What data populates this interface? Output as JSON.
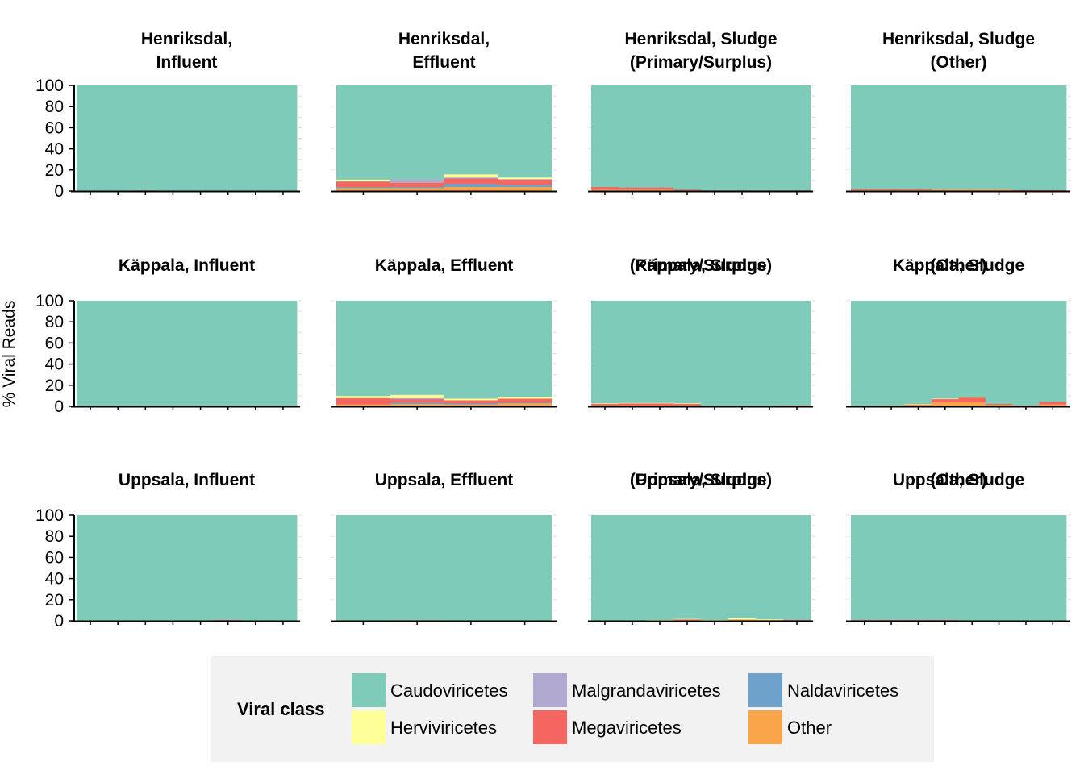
{
  "chart_data": {
    "type": "bar",
    "stacked": true,
    "layout": "facet-grid-3x4",
    "ylabel": "% Viral Reads",
    "ylim": [
      0,
      100
    ],
    "yticks": [
      0,
      20,
      40,
      60,
      80,
      100
    ],
    "grid": false,
    "legend": {
      "title": "Viral class",
      "position": "bottom"
    },
    "series": [
      {
        "name": "Caudoviricetes",
        "color": "#7ecbb9"
      },
      {
        "name": "Herviviricetes",
        "color": "#ffff99"
      },
      {
        "name": "Malgrandaviricetes",
        "color": "#b2a9d1"
      },
      {
        "name": "Megaviricetes",
        "color": "#f4665f"
      },
      {
        "name": "Naldaviricetes",
        "color": "#6fa2ca"
      },
      {
        "name": "Other",
        "color": "#fba54b"
      }
    ],
    "panels": [
      {
        "title": "Henriksdal,\nInfluent",
        "ticks": 8,
        "bars": [
          {
            "Other": 0.2,
            "Megaviricetes": 0.3,
            "Caudoviricetes": 99.5
          },
          {
            "Other": 0.2,
            "Megaviricetes": 0.3,
            "Caudoviricetes": 99.5
          },
          {
            "Other": 0.3,
            "Megaviricetes": 0.5,
            "Caudoviricetes": 99.2
          },
          {
            "Other": 0.2,
            "Megaviricetes": 0.3,
            "Caudoviricetes": 99.5
          },
          {
            "Other": 0.2,
            "Megaviricetes": 0.2,
            "Caudoviricetes": 99.6
          },
          {
            "Other": 0.2,
            "Megaviricetes": 0.3,
            "Caudoviricetes": 99.5
          },
          {
            "Other": 0.2,
            "Megaviricetes": 0.3,
            "Caudoviricetes": 99.5
          },
          {
            "Other": 0.2,
            "Megaviricetes": 0.2,
            "Caudoviricetes": 99.6
          }
        ]
      },
      {
        "title": "Henriksdal,\nEffluent",
        "ticks": 4,
        "bars": [
          {
            "Other": 3,
            "Naldaviricetes": 1,
            "Megaviricetes": 5,
            "Malgrandaviricetes": 0.5,
            "Herviviricetes": 1.5,
            "Caudoviricetes": 89
          },
          {
            "Other": 3,
            "Naldaviricetes": 1,
            "Megaviricetes": 4,
            "Malgrandaviricetes": 3,
            "Herviviricetes": 0,
            "Caudoviricetes": 89
          },
          {
            "Other": 4,
            "Naldaviricetes": 3,
            "Megaviricetes": 5,
            "Malgrandaviricetes": 1,
            "Herviviricetes": 3,
            "Caudoviricetes": 84
          },
          {
            "Other": 4,
            "Naldaviricetes": 2,
            "Megaviricetes": 5,
            "Malgrandaviricetes": 0.5,
            "Herviviricetes": 1.5,
            "Caudoviricetes": 87
          }
        ]
      },
      {
        "title": "Henriksdal, Sludge\n(Primary/Surplus)",
        "ticks": 8,
        "bars": [
          {
            "Other": 1.5,
            "Megaviricetes": 2.5,
            "Caudoviricetes": 96
          },
          {
            "Other": 1.5,
            "Megaviricetes": 2,
            "Caudoviricetes": 96.5
          },
          {
            "Other": 1.5,
            "Megaviricetes": 2,
            "Caudoviricetes": 96.5
          },
          {
            "Other": 0.5,
            "Megaviricetes": 1,
            "Caudoviricetes": 98.5
          },
          {
            "Other": 0.3,
            "Megaviricetes": 0.5,
            "Caudoviricetes": 99.2
          },
          {
            "Other": 0.3,
            "Megaviricetes": 0.5,
            "Caudoviricetes": 99.2
          },
          {
            "Other": 0.3,
            "Megaviricetes": 0.5,
            "Caudoviricetes": 99.2
          },
          {
            "Other": 0.3,
            "Megaviricetes": 0.5,
            "Caudoviricetes": 99.2
          }
        ]
      },
      {
        "title": "Henriksdal, Sludge\n(Other)",
        "ticks": 8,
        "bars": [
          {
            "Other": 1,
            "Megaviricetes": 1,
            "Caudoviricetes": 98
          },
          {
            "Other": 1,
            "Megaviricetes": 1,
            "Caudoviricetes": 98
          },
          {
            "Other": 1,
            "Megaviricetes": 1,
            "Caudoviricetes": 98
          },
          {
            "Other": 1,
            "Megaviricetes": 0.5,
            "Herviviricetes": 0.5,
            "Caudoviricetes": 98
          },
          {
            "Other": 1,
            "Megaviricetes": 0.5,
            "Herviviricetes": 0.5,
            "Caudoviricetes": 98
          },
          {
            "Other": 1,
            "Megaviricetes": 0.5,
            "Herviviricetes": 0.5,
            "Caudoviricetes": 98
          },
          {
            "Other": 0.5,
            "Megaviricetes": 0.5,
            "Caudoviricetes": 99
          },
          {
            "Other": 0.5,
            "Megaviricetes": 0.5,
            "Caudoviricetes": 99
          }
        ]
      },
      {
        "title": "Käppala, Influent",
        "ticks": 8,
        "bars": [
          {
            "Other": 0.2,
            "Megaviricetes": 0.3,
            "Caudoviricetes": 99.5
          },
          {
            "Other": 0.2,
            "Megaviricetes": 0.3,
            "Caudoviricetes": 99.5
          },
          {
            "Other": 0.2,
            "Megaviricetes": 0.3,
            "Caudoviricetes": 99.5
          },
          {
            "Other": 0.2,
            "Megaviricetes": 0.3,
            "Caudoviricetes": 99.5
          },
          {
            "Other": 0.2,
            "Megaviricetes": 0.3,
            "Caudoviricetes": 99.5
          },
          {
            "Other": 0.2,
            "Megaviricetes": 0.3,
            "Caudoviricetes": 99.5
          },
          {
            "Other": 0.2,
            "Megaviricetes": 0.3,
            "Caudoviricetes": 99.5
          },
          {
            "Other": 0.2,
            "Megaviricetes": 0.3,
            "Caudoviricetes": 99.5
          }
        ]
      },
      {
        "title": "Käppala, Effluent",
        "ticks": 4,
        "bars": [
          {
            "Other": 2,
            "Megaviricetes": 6,
            "Herviviricetes": 2,
            "Caudoviricetes": 90
          },
          {
            "Other": 2.5,
            "Naldaviricetes": 1.5,
            "Megaviricetes": 3,
            "Malgrandaviricetes": 1,
            "Herviviricetes": 3,
            "Caudoviricetes": 89
          },
          {
            "Other": 2,
            "Naldaviricetes": 1,
            "Megaviricetes": 3,
            "Herviviricetes": 1.5,
            "Caudoviricetes": 92.5
          },
          {
            "Other": 3,
            "Naldaviricetes": 1,
            "Megaviricetes": 3.5,
            "Herviviricetes": 1.5,
            "Caudoviricetes": 91
          }
        ]
      },
      {
        "title": "Käppala, Sludge\n(Primary/Surplus)",
        "ticks": 8,
        "bars": [
          {
            "Other": 1,
            "Megaviricetes": 1.5,
            "Herviviricetes": 0.5,
            "Caudoviricetes": 97
          },
          {
            "Other": 1,
            "Megaviricetes": 2,
            "Herviviricetes": 0.5,
            "Caudoviricetes": 96.5
          },
          {
            "Other": 1,
            "Megaviricetes": 2,
            "Herviviricetes": 0.5,
            "Caudoviricetes": 96.5
          },
          {
            "Other": 1,
            "Megaviricetes": 1.5,
            "Herviviricetes": 0.5,
            "Caudoviricetes": 97
          },
          {
            "Other": 0.2,
            "Megaviricetes": 0.3,
            "Caudoviricetes": 99.5
          },
          {
            "Other": 0.2,
            "Megaviricetes": 0.3,
            "Caudoviricetes": 99.5
          },
          {
            "Other": 0.2,
            "Megaviricetes": 0.3,
            "Caudoviricetes": 99.5
          },
          {
            "Other": 0.3,
            "Megaviricetes": 0.7,
            "Caudoviricetes": 99
          }
        ]
      },
      {
        "title": "Käppala, Sludge\n(Other)",
        "ticks": 8,
        "bars": [
          {
            "Other": 0.2,
            "Megaviricetes": 0.3,
            "Caudoviricetes": 99.5
          },
          {
            "Other": 0.5,
            "Herviviricetes": 0.5,
            "Caudoviricetes": 99
          },
          {
            "Other": 1.5,
            "Megaviricetes": 0.5,
            "Herviviricetes": 0.5,
            "Caudoviricetes": 97.5
          },
          {
            "Other": 4,
            "Megaviricetes": 3,
            "Herviviricetes": 0.5,
            "Caudoviricetes": 92.5
          },
          {
            "Other": 4,
            "Megaviricetes": 4.5,
            "Herviviricetes": 0.5,
            "Caudoviricetes": 91
          },
          {
            "Other": 1.5,
            "Megaviricetes": 1,
            "Caudoviricetes": 97.5
          },
          {
            "Other": 0.5,
            "Megaviricetes": 0.5,
            "Caudoviricetes": 99
          },
          {
            "Other": 2,
            "Megaviricetes": 2.5,
            "Caudoviricetes": 95.5
          }
        ]
      },
      {
        "title": "Uppsala, Influent",
        "ticks": 8,
        "bars": [
          {
            "Other": 0.2,
            "Megaviricetes": 0.2,
            "Caudoviricetes": 99.6
          },
          {
            "Other": 0.2,
            "Megaviricetes": 0.2,
            "Caudoviricetes": 99.6
          },
          {
            "Other": 0.2,
            "Megaviricetes": 0.2,
            "Caudoviricetes": 99.6
          },
          {
            "Other": 0.2,
            "Megaviricetes": 0.2,
            "Caudoviricetes": 99.6
          },
          {
            "Other": 0.2,
            "Megaviricetes": 0.2,
            "Caudoviricetes": 99.6
          },
          {
            "Other": 0.3,
            "Megaviricetes": 0.7,
            "Caudoviricetes": 99
          },
          {
            "Other": 0.2,
            "Megaviricetes": 0.2,
            "Caudoviricetes": 99.6
          },
          {
            "Other": 0.2,
            "Megaviricetes": 0.2,
            "Caudoviricetes": 99.6
          }
        ]
      },
      {
        "title": "Uppsala, Effluent",
        "ticks": 4,
        "bars": [
          {
            "Other": 0.2,
            "Megaviricetes": 0.3,
            "Caudoviricetes": 99.5
          },
          {
            "Other": 0.3,
            "Megaviricetes": 0.4,
            "Caudoviricetes": 99.3
          },
          {
            "Other": 0.2,
            "Megaviricetes": 0.2,
            "Caudoviricetes": 99.6
          },
          {
            "Other": 0.2,
            "Megaviricetes": 0.2,
            "Caudoviricetes": 99.6
          }
        ]
      },
      {
        "title": "Uppsala, Sludge\n(Primary/Surplus)",
        "ticks": 8,
        "bars": [
          {
            "Other": 0.2,
            "Megaviricetes": 0.3,
            "Caudoviricetes": 99.5
          },
          {
            "Other": 0.2,
            "Megaviricetes": 0.3,
            "Caudoviricetes": 99.5
          },
          {
            "Other": 0.5,
            "Herviviricetes": 0.5,
            "Caudoviricetes": 99
          },
          {
            "Other": 1,
            "Megaviricetes": 0.5,
            "Herviviricetes": 0.5,
            "Caudoviricetes": 98
          },
          {
            "Other": 0.5,
            "Herviviricetes": 0.5,
            "Caudoviricetes": 99
          },
          {
            "Other": 1.5,
            "Herviviricetes": 1,
            "Caudoviricetes": 97.5
          },
          {
            "Other": 1,
            "Herviviricetes": 0.5,
            "Caudoviricetes": 98.5
          },
          {
            "Other": 0.5,
            "Megaviricetes": 0.5,
            "Caudoviricetes": 99
          }
        ]
      },
      {
        "title": "Uppsala, Sludge\n(Other)",
        "ticks": 8,
        "bars": [
          {
            "Other": 0.3,
            "Megaviricetes": 0.5,
            "Malgrandaviricetes": 0.3,
            "Caudoviricetes": 98.9
          },
          {
            "Other": 0.3,
            "Megaviricetes": 0.7,
            "Caudoviricetes": 99
          },
          {
            "Other": 0.3,
            "Megaviricetes": 0.7,
            "Caudoviricetes": 99
          },
          {
            "Other": 0.3,
            "Megaviricetes": 0.7,
            "Caudoviricetes": 99
          },
          {
            "Other": 0.3,
            "Herviviricetes": 0.3,
            "Caudoviricetes": 99.4
          },
          {
            "Other": 0.3,
            "Herviviricetes": 0.3,
            "Caudoviricetes": 99.4
          },
          {
            "Other": 0.2,
            "Megaviricetes": 0.2,
            "Caudoviricetes": 99.6
          },
          {
            "Other": 0.2,
            "Megaviricetes": 0.2,
            "Caudoviricetes": 99.6
          }
        ]
      }
    ]
  }
}
